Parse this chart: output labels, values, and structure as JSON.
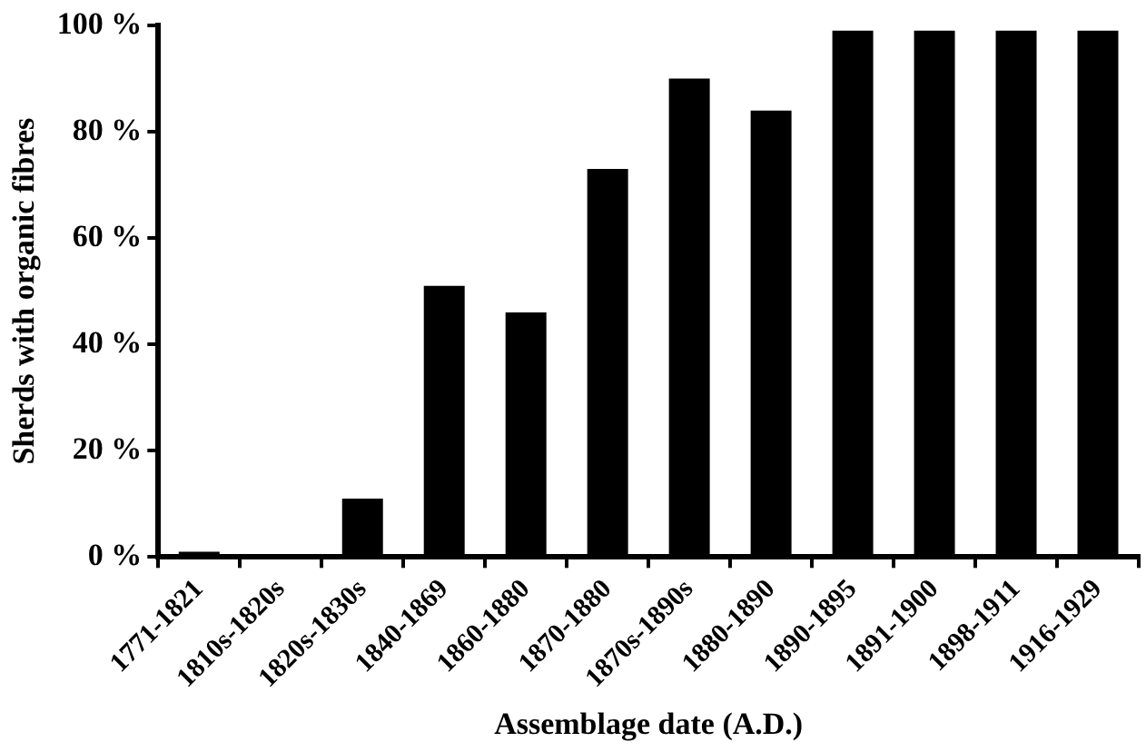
{
  "chart_data": {
    "type": "bar",
    "xlabel": "Assemblage date (A.D.)",
    "ylabel": "Sherds with organic fibres",
    "categories": [
      "1771-1821",
      "1810s-1820s",
      "1820s-1830s",
      "1840-1869",
      "1860-1880",
      "1870-1880",
      "1870s-1890s",
      "1880-1890",
      "1890-1895",
      "1891-1900",
      "1898-1911",
      "1916-1929"
    ],
    "values": [
      1,
      0,
      11,
      51,
      46,
      73,
      90,
      84,
      99,
      99,
      99,
      99
    ],
    "color": "#000000",
    "ylim": [
      0,
      100
    ],
    "yticks": [
      {
        "value": 0,
        "label": "0 %"
      },
      {
        "value": 20,
        "label": "20 %"
      },
      {
        "value": 40,
        "label": "40 %"
      },
      {
        "value": 60,
        "label": "60 %"
      },
      {
        "value": 80,
        "label": "80 %"
      },
      {
        "value": 100,
        "label": "100 %"
      }
    ]
  }
}
